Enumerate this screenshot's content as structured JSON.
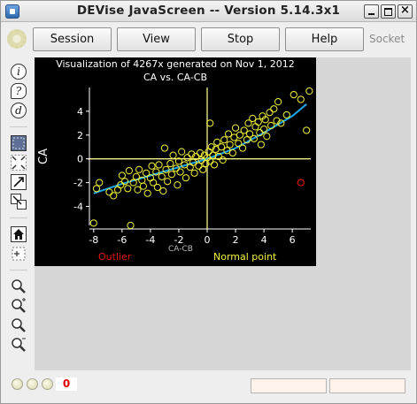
{
  "window": {
    "title": "DEVise JavaScreen -- Version 5.14.3x1",
    "close_glyph": "×"
  },
  "menu": {
    "session": "Session",
    "view": "View",
    "stop": "Stop",
    "help": "Help",
    "socket": "Socket"
  },
  "tools": {
    "info": "i",
    "help": "?",
    "debug": "d"
  },
  "status": {
    "error_count": "0"
  },
  "colors": {
    "point": "#f2f23a",
    "outlier": "#e01010",
    "fit_line": "#1ea7e8",
    "axis": "#f3f08a",
    "background": "#000000"
  },
  "chart_data": {
    "type": "scatter",
    "title": "Visualization of 4267x generated on Nov 1, 2012",
    "subtitle": "CA vs. CA-CB",
    "xlabel": "CA-CB",
    "ylabel": "CA",
    "xlim": [
      -8.3,
      7.3
    ],
    "ylim": [
      -5.6,
      6.0
    ],
    "xticks": [
      -8,
      -6,
      -4,
      -2,
      0,
      2,
      4,
      6
    ],
    "yticks": [
      -4,
      -2,
      0,
      2,
      4
    ],
    "legend": [
      {
        "label": "Outlier",
        "color": "#e01010"
      },
      {
        "label": "Normal point",
        "color": "#f2f23a"
      }
    ],
    "reference_lines": {
      "x": 0,
      "y": 0
    },
    "fit_line": [
      [
        -8,
        -2.9
      ],
      [
        -6,
        -2.1
      ],
      [
        -4,
        -1.4
      ],
      [
        -2,
        -0.7
      ],
      [
        0,
        0.0
      ],
      [
        2,
        0.9
      ],
      [
        4,
        2.2
      ],
      [
        6,
        3.6
      ],
      [
        7,
        4.6
      ]
    ],
    "outliers": [
      [
        6.6,
        -2.0
      ]
    ],
    "points": [
      [
        -8.0,
        -5.4
      ],
      [
        -7.8,
        -2.5
      ],
      [
        -7.6,
        -2.0
      ],
      [
        -6.9,
        -2.8
      ],
      [
        -6.6,
        -3.1
      ],
      [
        -6.3,
        -2.6
      ],
      [
        -6.1,
        -2.2
      ],
      [
        -6.0,
        -1.4
      ],
      [
        -5.8,
        -1.9
      ],
      [
        -5.6,
        -2.5
      ],
      [
        -5.5,
        -1.0
      ],
      [
        -5.4,
        -5.6
      ],
      [
        -5.2,
        -2.0
      ],
      [
        -5.0,
        -1.5
      ],
      [
        -4.9,
        -2.6
      ],
      [
        -4.8,
        -0.9
      ],
      [
        -4.6,
        -1.8
      ],
      [
        -4.5,
        -2.3
      ],
      [
        -4.3,
        -1.2
      ],
      [
        -4.2,
        -2.9
      ],
      [
        -4.0,
        -1.6
      ],
      [
        -3.9,
        -0.6
      ],
      [
        -3.8,
        -2.0
      ],
      [
        -3.6,
        -1.1
      ],
      [
        -3.5,
        -2.4
      ],
      [
        -3.4,
        -0.5
      ],
      [
        -3.2,
        -1.5
      ],
      [
        -3.1,
        -2.7
      ],
      [
        -3.0,
        0.9
      ],
      [
        -2.9,
        -0.9
      ],
      [
        -2.8,
        -1.9
      ],
      [
        -2.6,
        -0.4
      ],
      [
        -2.5,
        -1.3
      ],
      [
        -2.4,
        0.3
      ],
      [
        -2.2,
        -0.8
      ],
      [
        -2.1,
        -2.2
      ],
      [
        -2.0,
        -0.2
      ],
      [
        -1.9,
        -1.1
      ],
      [
        -1.8,
        0.6
      ],
      [
        -1.6,
        -0.5
      ],
      [
        -1.5,
        -1.6
      ],
      [
        -1.4,
        0.1
      ],
      [
        -1.2,
        -0.7
      ],
      [
        -1.1,
        0.4
      ],
      [
        -1.0,
        -0.3
      ],
      [
        -0.9,
        -1.2
      ],
      [
        -0.8,
        0.2
      ],
      [
        -0.6,
        -0.6
      ],
      [
        -0.5,
        0.5
      ],
      [
        -0.4,
        -0.1
      ],
      [
        -0.3,
        -0.9
      ],
      [
        -0.2,
        0.3
      ],
      [
        -0.1,
        -0.4
      ],
      [
        0.0,
        0.1
      ],
      [
        0.1,
        0.6
      ],
      [
        0.2,
        -0.2
      ],
      [
        0.3,
        1.0
      ],
      [
        0.4,
        0.3
      ],
      [
        0.5,
        -0.5
      ],
      [
        0.6,
        0.8
      ],
      [
        0.2,
        3.0
      ],
      [
        0.7,
        1.4
      ],
      [
        0.8,
        0.2
      ],
      [
        1.0,
        1.0
      ],
      [
        1.1,
        -0.1
      ],
      [
        1.2,
        1.6
      ],
      [
        1.4,
        0.7
      ],
      [
        1.5,
        2.1
      ],
      [
        1.6,
        1.2
      ],
      [
        1.8,
        0.5
      ],
      [
        1.9,
        1.8
      ],
      [
        2.0,
        2.6
      ],
      [
        2.2,
        1.3
      ],
      [
        2.3,
        2.0
      ],
      [
        2.5,
        0.9
      ],
      [
        2.6,
        2.4
      ],
      [
        2.8,
        1.6
      ],
      [
        2.9,
        3.0
      ],
      [
        3.0,
        2.1
      ],
      [
        3.2,
        3.4
      ],
      [
        3.3,
        1.7
      ],
      [
        3.4,
        2.7
      ],
      [
        3.6,
        3.1
      ],
      [
        3.7,
        2.2
      ],
      [
        3.8,
        1.2
      ],
      [
        3.9,
        3.6
      ],
      [
        4.0,
        2.5
      ],
      [
        4.1,
        3.3
      ],
      [
        4.2,
        1.9
      ],
      [
        4.4,
        3.9
      ],
      [
        4.5,
        2.8
      ],
      [
        4.7,
        4.2
      ],
      [
        4.9,
        3.2
      ],
      [
        5.0,
        4.8
      ],
      [
        5.2,
        3.0
      ],
      [
        5.6,
        3.7
      ],
      [
        6.1,
        5.4
      ],
      [
        6.6,
        5.0
      ],
      [
        7.0,
        2.4
      ],
      [
        7.2,
        5.7
      ]
    ]
  }
}
